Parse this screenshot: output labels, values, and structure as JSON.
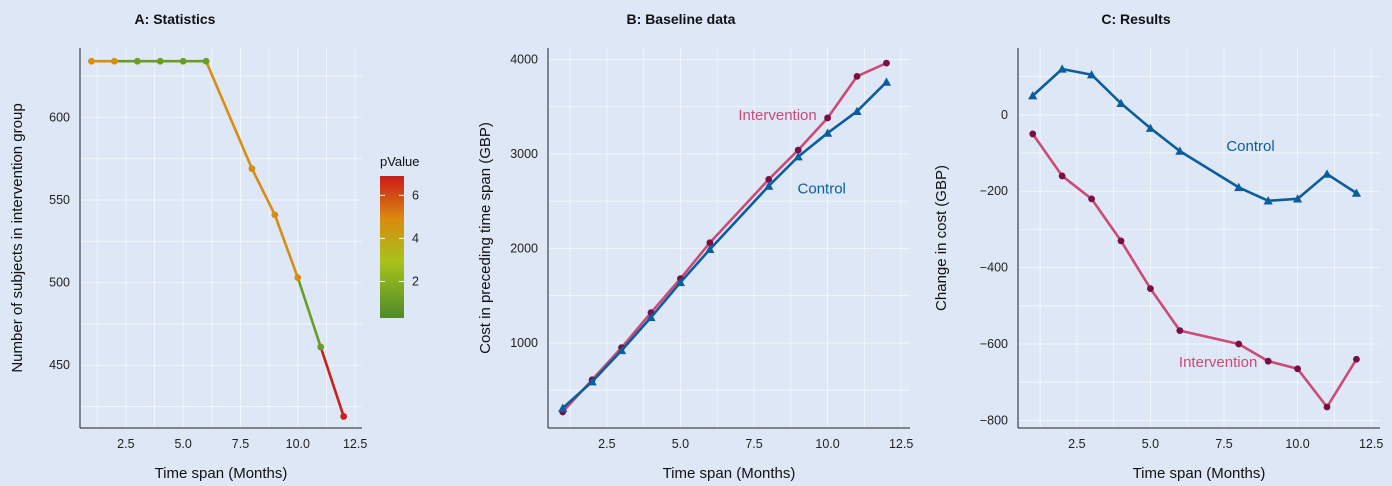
{
  "colors": {
    "background": "#dde7f5",
    "control": "#0b5e9c",
    "intervention": "#cc4a78",
    "intervention_point": "#7a0f45",
    "pvalue_gradient": [
      "#4e8b2c",
      "#a8c21a",
      "#d98a0f",
      "#cc1a1a"
    ]
  },
  "chart_data": [
    {
      "type": "line",
      "title": "A: Statistics",
      "xlabel": "Time span (Months)",
      "ylabel": "Number of subjects in intervention group",
      "xlim": [
        0.5,
        12.8
      ],
      "ylim": [
        412,
        642
      ],
      "xticks": [
        "2.5",
        "5.0",
        "7.5",
        "10.0",
        "12.5"
      ],
      "yticks": [
        "450",
        "500",
        "550",
        "600"
      ],
      "color_by": "pValue",
      "legend": {
        "title": "pValue",
        "ticks": [
          "2",
          "4",
          "6"
        ],
        "range": [
          0.3,
          6.9
        ],
        "placement": "right"
      },
      "points": [
        {
          "x": 1,
          "y": 634,
          "pvalue": 4.6
        },
        {
          "x": 2,
          "y": 634,
          "pvalue": 4.6
        },
        {
          "x": 3,
          "y": 634,
          "pvalue": 1.0
        },
        {
          "x": 4,
          "y": 634,
          "pvalue": 1.0
        },
        {
          "x": 5,
          "y": 634,
          "pvalue": 1.0
        },
        {
          "x": 6,
          "y": 634,
          "pvalue": 1.0
        },
        {
          "x": 8,
          "y": 569,
          "pvalue": 4.6
        },
        {
          "x": 9,
          "y": 541,
          "pvalue": 4.6
        },
        {
          "x": 10,
          "y": 503,
          "pvalue": 4.6
        },
        {
          "x": 11,
          "y": 461,
          "pvalue": 1.0
        },
        {
          "x": 12,
          "y": 419,
          "pvalue": 6.8
        }
      ]
    },
    {
      "type": "line",
      "title": "B: Baseline data",
      "xlabel": "Time span (Months)",
      "ylabel": "Cost in preceding time span (GBP)",
      "xlim": [
        0.5,
        12.8
      ],
      "ylim": [
        100,
        4120
      ],
      "xticks": [
        "2.5",
        "5.0",
        "7.5",
        "10.0",
        "12.5"
      ],
      "yticks": [
        "1000",
        "2000",
        "3000",
        "4000"
      ],
      "series": [
        {
          "name": "Intervention",
          "marker": "circle",
          "x": [
            1,
            2,
            3,
            4,
            5,
            6,
            8,
            9,
            10,
            11,
            12
          ],
          "values": [
            270,
            610,
            950,
            1320,
            1680,
            2060,
            2730,
            3040,
            3380,
            3820,
            3960
          ]
        },
        {
          "name": "Control",
          "marker": "triangle",
          "x": [
            1,
            2,
            3,
            4,
            5,
            6,
            8,
            9,
            10,
            11,
            12
          ],
          "values": [
            310,
            590,
            920,
            1270,
            1640,
            1990,
            2660,
            2970,
            3220,
            3450,
            3760
          ]
        }
      ],
      "annotations": [
        {
          "text": "Intervention",
          "series": "Intervention",
          "x": 8.3,
          "y": 3360
        },
        {
          "text": "Control",
          "series": "Control",
          "x": 9.8,
          "y": 2580
        }
      ]
    },
    {
      "type": "line",
      "title": "C: Results",
      "xlabel": "Time span (Months)",
      "ylabel": "Change in cost (GBP)",
      "xlim": [
        0.5,
        12.8
      ],
      "ylim": [
        -820,
        175
      ],
      "xticks": [
        "2.5",
        "5.0",
        "7.5",
        "10.0",
        "12.5"
      ],
      "yticks": [
        "−800",
        "−600",
        "−400",
        "−200",
        "0"
      ],
      "series": [
        {
          "name": "Control",
          "marker": "triangle",
          "x": [
            1,
            2,
            3,
            4,
            5,
            6,
            8,
            9,
            10,
            11,
            12
          ],
          "values": [
            50,
            120,
            105,
            30,
            -35,
            -95,
            -190,
            -225,
            -220,
            -155,
            -205
          ]
        },
        {
          "name": "Intervention",
          "marker": "circle",
          "x": [
            1,
            2,
            3,
            4,
            5,
            6,
            8,
            9,
            10,
            11,
            12
          ],
          "values": [
            -50,
            -160,
            -220,
            -330,
            -455,
            -565,
            -600,
            -645,
            -665,
            -765,
            -640
          ]
        }
      ],
      "annotations": [
        {
          "text": "Control",
          "series": "Control",
          "x": 8.4,
          "y": -95
        },
        {
          "text": "Intervention",
          "series": "Intervention",
          "x": 7.3,
          "y": -660
        }
      ]
    }
  ]
}
